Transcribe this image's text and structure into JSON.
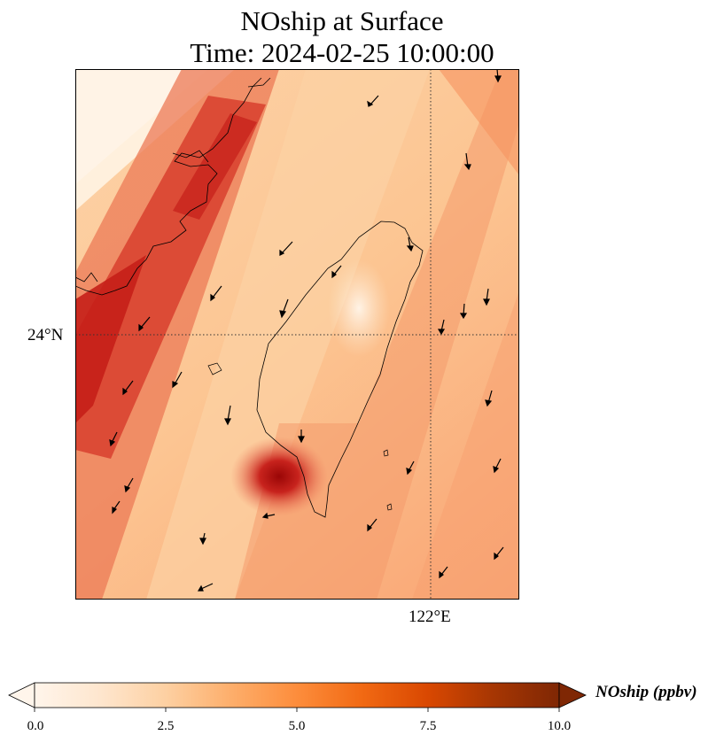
{
  "title_line1": "NOship at Surface",
  "title_line2": "Time: 2024-02-25 10:00:00",
  "map": {
    "lat_label": "24°N",
    "lon_label": "122°E",
    "gridline_lat": 24,
    "gridline_lon": 122
  },
  "colorbar": {
    "label": "NOship (ppbv)",
    "min": 0.0,
    "max": 10.0,
    "ticks": [
      "0.0",
      "2.5",
      "5.0",
      "7.5",
      "10.0"
    ],
    "colormap": [
      "#fff5eb",
      "#fee6ce",
      "#fdd0a2",
      "#fdae6b",
      "#fd8d3c",
      "#f16913",
      "#d94801",
      "#a63603",
      "#7f2704"
    ],
    "extend": "both"
  },
  "colors": {
    "plume_low": "#fde0c0",
    "plume_high": "#c81e1a",
    "hotspot": "#a00808"
  }
}
